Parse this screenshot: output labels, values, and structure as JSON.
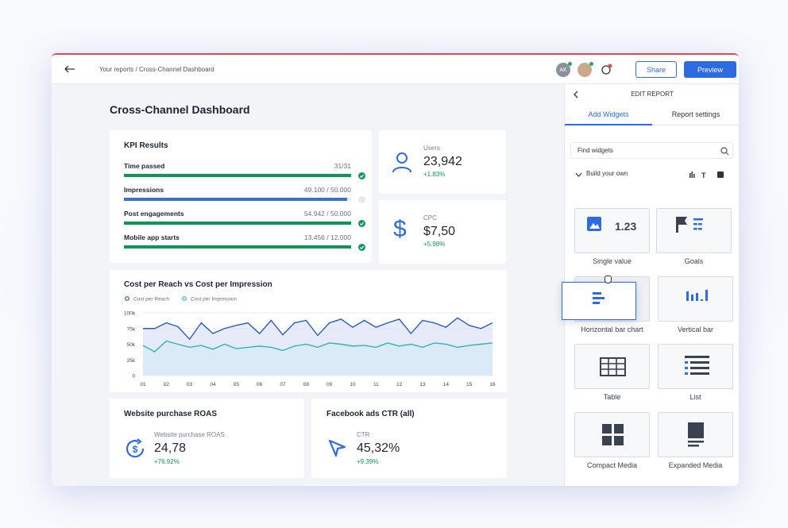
{
  "header": {
    "breadcrumb": "Your reports / Cross-Channel Dashboard",
    "avatar": "AK",
    "share": "Share",
    "preview": "Preview"
  },
  "dashboard": {
    "title": "Cross-Channel Dashboard",
    "kpi": {
      "title": "KPI Results",
      "rows": [
        {
          "label": "Time passed",
          "value": "31/31",
          "progress": 100,
          "color": "#11965a"
        },
        {
          "label": "Impressions",
          "value": "49.100 / 50.000",
          "progress": 98.2,
          "color": "#3b6fd9"
        },
        {
          "label": "Post engagements",
          "value": "54.942 / 50.000",
          "progress": 100,
          "color": "#11965a"
        },
        {
          "label": "Mobile app starts",
          "value": "13.456 / 12.000",
          "progress": 100,
          "color": "#11965a"
        }
      ]
    },
    "users": {
      "label": "Users",
      "value": "23,942",
      "change": "+1.83%"
    },
    "cpc": {
      "label": "CPC",
      "value": "$7,50",
      "change": "+5.98%"
    },
    "roas": {
      "title": "Website purchase ROAS",
      "label": "Website purchase ROAS",
      "value": "24,78",
      "change": "+76.92%"
    },
    "ctr": {
      "title": "Facebook ads CTR (all)",
      "label": "CTR",
      "value": "45,32%",
      "change": "+9.39%"
    }
  },
  "chart_data": {
    "type": "line",
    "title": "Cost per Reach vs Cost per Impression",
    "categories": [
      "01",
      null,
      "02",
      null,
      "03",
      null,
      "04",
      null,
      "05",
      null,
      "06",
      null,
      "07",
      null,
      "08",
      null,
      "09",
      null,
      "10",
      null,
      "11",
      null,
      "12",
      null,
      "13",
      null,
      "14",
      null,
      "15",
      null,
      "16"
    ],
    "series": [
      {
        "name": "Cost per Reach",
        "color": "#2d5bb8",
        "values": [
          75000,
          75000,
          84000,
          78000,
          58000,
          84000,
          67000,
          75000,
          80000,
          84000,
          67000,
          88000,
          65000,
          84000,
          88000,
          64000,
          84000,
          90000,
          77000,
          88000,
          77000,
          84000,
          90000,
          67000,
          88000,
          84000,
          77000,
          92000,
          80000,
          75000,
          84000
        ]
      },
      {
        "name": "Cost per Impression",
        "color": "#2fb6b0",
        "values": [
          48000,
          38000,
          55000,
          50000,
          45000,
          48000,
          42000,
          50000,
          43000,
          45000,
          47000,
          45000,
          40000,
          47000,
          50000,
          45000,
          52000,
          50000,
          47000,
          48000,
          45000,
          52000,
          47000,
          50000,
          45000,
          52000,
          50000,
          45000,
          48000,
          50000,
          52000
        ]
      }
    ],
    "ylim": [
      0,
      100000
    ],
    "yticks": [
      0,
      {
        "value": 25000,
        "label": "25k"
      },
      {
        "value": 50000,
        "label": "50k"
      },
      {
        "value": 75000,
        "label": "75k"
      },
      {
        "value": 100000,
        "label": "100k"
      }
    ],
    "grid": true
  },
  "panel": {
    "title": "EDIT REPORT",
    "tabs": [
      "Add Widgets",
      "Report settings"
    ],
    "search": "Find widgets",
    "section": "Build your own",
    "sample_value": "1.23",
    "widgets": [
      "Single value",
      "Goals",
      "Horizontal bar chart",
      "Vertical bar",
      "Table",
      "List",
      "Compact Media",
      "Expanded Media"
    ]
  }
}
